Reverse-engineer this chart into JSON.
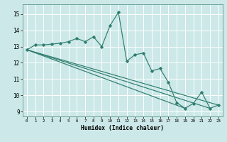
{
  "xlabel": "Humidex (Indice chaleur)",
  "bg_color": "#cce8e8",
  "grid_color": "#ffffff",
  "line_color": "#2e7d6e",
  "xlim": [
    -0.5,
    23.5
  ],
  "ylim": [
    8.7,
    15.6
  ],
  "yticks": [
    9,
    10,
    11,
    12,
    13,
    14,
    15
  ],
  "xticks": [
    0,
    1,
    2,
    3,
    4,
    5,
    6,
    7,
    8,
    9,
    10,
    11,
    12,
    13,
    14,
    15,
    16,
    17,
    18,
    19,
    20,
    21,
    22,
    23
  ],
  "main_series_x": [
    0,
    1,
    2,
    3,
    4,
    5,
    6,
    7,
    8,
    9,
    10,
    11,
    12,
    13,
    14,
    15,
    16,
    17,
    18,
    19,
    20,
    21,
    22,
    23
  ],
  "main_series_y": [
    12.8,
    13.1,
    13.1,
    13.15,
    13.2,
    13.3,
    13.5,
    13.3,
    13.6,
    13.0,
    14.3,
    15.1,
    12.1,
    12.5,
    12.6,
    11.5,
    11.65,
    10.8,
    9.55,
    9.2,
    9.5,
    10.2,
    9.2,
    9.4
  ],
  "line1_x": [
    0,
    23
  ],
  "line1_y": [
    12.8,
    9.4
  ],
  "line2_x": [
    0,
    22
  ],
  "line2_y": [
    12.8,
    9.2
  ],
  "line3_x": [
    0,
    19
  ],
  "line3_y": [
    12.8,
    9.2
  ]
}
